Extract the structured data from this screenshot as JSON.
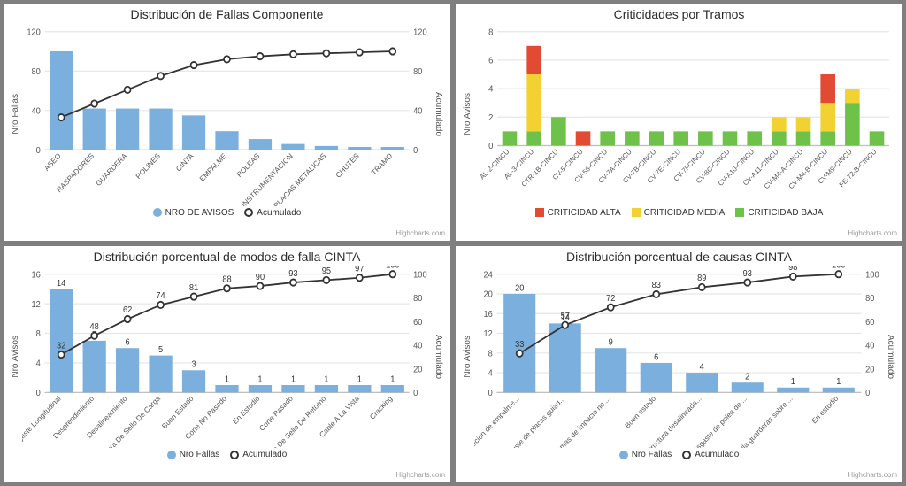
{
  "colors": {
    "bar_blue": "#7bafde",
    "line_black": "#333333",
    "grid": "#e6e6e6",
    "axis": "#c0c0c0",
    "red": "#e34a33",
    "yellow": "#f2d233",
    "green": "#6ec24a",
    "bg": "#ffffff",
    "page_bg": "#7f7f7f"
  },
  "credit": "Highcharts.com",
  "chart1": {
    "title": "Distribución de Fallas Componente",
    "ylabel_left": "Nro Fallas",
    "ylabel_right": "Acumulado",
    "ylim": [
      0,
      120
    ],
    "ystep": 40,
    "y2lim": [
      0,
      120
    ],
    "y2step": 40,
    "categories": [
      "ASEO",
      "RASPADORES",
      "GUARDERA",
      "POLINES",
      "CINTA",
      "EMPALME",
      "POLEAS",
      "INSTRUMENTACION",
      "PLACAS METALICAS",
      "CHUTES",
      "TRAMO"
    ],
    "bars": [
      100,
      42,
      42,
      42,
      35,
      19,
      11,
      6,
      4,
      3,
      3
    ],
    "cumulative": [
      33,
      47,
      61,
      75,
      86,
      92,
      95,
      97,
      98,
      99,
      100
    ],
    "cumulative_scale": 120,
    "legend": [
      {
        "label": "NRO DE AVISOS",
        "type": "bar",
        "color": "#7bafde"
      },
      {
        "label": "Acumulado",
        "type": "line",
        "color": "#333333"
      }
    ]
  },
  "chart2": {
    "title": "Criticidades por Tramos",
    "ylabel_left": "Nro Avisos",
    "ylim": [
      0,
      8
    ],
    "ystep": 2,
    "categories": [
      "AL-2-CINCU",
      "AL-3-CINCU",
      "CTR-1B-CINCU",
      "CV-5-CINCU",
      "CV-56-CINCU",
      "CV-7A-CINCU",
      "CV-7B-CINCU",
      "CV-7E-CINCU",
      "CV-7I-CINCU",
      "CV-8C-CINCU",
      "CV-A10-CINCU",
      "CV-A11-CINCU",
      "CV-M4-A-CINCU",
      "CV-M4-B-CINCU",
      "CV-M9-CINCU",
      "FE-72-B-CINCU"
    ],
    "stack_baja": [
      1,
      1,
      2,
      0,
      1,
      1,
      1,
      1,
      1,
      1,
      1,
      1,
      1,
      1,
      3,
      1
    ],
    "stack_media": [
      0,
      4,
      0,
      0,
      0,
      0,
      0,
      0,
      0,
      0,
      0,
      1,
      1,
      2,
      1,
      0
    ],
    "stack_alta": [
      0,
      2,
      0,
      1,
      0,
      0,
      0,
      0,
      0,
      0,
      0,
      0,
      0,
      2,
      0,
      0
    ],
    "legend": [
      {
        "label": "CRITICIDAD ALTA",
        "type": "square",
        "color": "#e34a33"
      },
      {
        "label": "CRITICIDAD MEDIA",
        "type": "square",
        "color": "#f2d233"
      },
      {
        "label": "CRITICIDAD BAJA",
        "type": "square",
        "color": "#6ec24a"
      }
    ]
  },
  "chart3": {
    "title": "Distribución porcentual de modos de falla CINTA",
    "ylabel_left": "Nro Avisos",
    "ylabel_right": "Acumulado",
    "ylim": [
      0,
      16
    ],
    "ystep": 4,
    "y2lim": [
      0,
      100
    ],
    "y2step": 20,
    "categories": [
      "Desgaste Longitudinal",
      "Desprendimiento",
      "Desalineamiento",
      "Abertura De Sello De Carga",
      "Buen Estado",
      "Corte No Pasado",
      "En Estudio",
      "Corte Pasado",
      "Abertura De Sello De Retorno",
      "Cable A La Vista",
      "Cracking"
    ],
    "bars": [
      14,
      7,
      6,
      5,
      3,
      1,
      1,
      1,
      1,
      1,
      1
    ],
    "bar_labels": [
      14,
      7,
      6,
      5,
      3,
      1,
      1,
      1,
      1,
      1,
      1
    ],
    "cumulative": [
      32,
      48,
      62,
      74,
      81,
      88,
      90,
      93,
      95,
      97,
      100
    ],
    "legend": [
      {
        "label": "Nro Fallas",
        "type": "bar",
        "color": "#7bafde"
      },
      {
        "label": "Acumulado",
        "type": "line",
        "color": "#333333"
      }
    ]
  },
  "chart4": {
    "title": "Distribución porcentual de causas CINTA",
    "ylabel_left": "Nro Avisos",
    "ylabel_right": "Acumulado",
    "ylim": [
      0,
      24
    ],
    "ystep": 4,
    "y2lim": [
      0,
      100
    ],
    "y2step": 20,
    "categories": [
      "Ejecucion de empalme...",
      "Ajuste de placas guiad...",
      "Camas de impacto no ...",
      "Buen estado",
      "Estructura desalineada...",
      "Desgaste de polea de ...",
      "falla guarderas sobre ...",
      "En estudio"
    ],
    "bars": [
      20,
      14,
      9,
      6,
      4,
      2,
      1,
      1
    ],
    "bar_labels": [
      20,
      14,
      9,
      6,
      4,
      2,
      1,
      1
    ],
    "cumulative": [
      33,
      57,
      72,
      83,
      89,
      93,
      98,
      100
    ],
    "cumulative_mid_labels": [
      2,
      2
    ],
    "legend": [
      {
        "label": "Nro Fallas",
        "type": "bar",
        "color": "#7bafde"
      },
      {
        "label": "Acumulado",
        "type": "line",
        "color": "#333333"
      }
    ]
  }
}
